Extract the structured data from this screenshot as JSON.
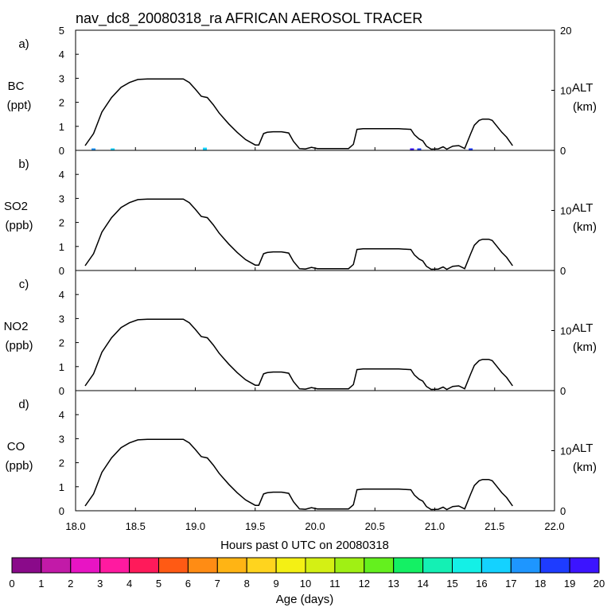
{
  "chart_data": {
    "type": "line",
    "title": "nav_dc8_20080318_ra AFRICAN AEROSOL TRACER",
    "xlabel": "Hours past 0 UTC on 20080318",
    "xlim": [
      18.0,
      22.0
    ],
    "x_ticks": [
      "18.0",
      "18.5",
      "19.0",
      "19.5",
      "20.0",
      "20.5",
      "21.0",
      "21.5",
      "22.0"
    ],
    "y_ticks": [
      "0",
      "1",
      "2",
      "3",
      "4",
      "5"
    ],
    "right_axis": {
      "label": "ALT",
      "unit": "(km)",
      "ylim": [
        0,
        20
      ],
      "ticks": [
        "0",
        "10",
        "20"
      ]
    },
    "panels": [
      {
        "letter": "a)",
        "species": "BC",
        "unit": "(ppt)",
        "ylim": [
          0,
          5
        ],
        "show_top_ticks": true
      },
      {
        "letter": "b)",
        "species": "SO2",
        "unit": "(ppb)",
        "ylim": [
          0,
          5
        ],
        "show_top_ticks": false
      },
      {
        "letter": "c)",
        "species": "NO2",
        "unit": "(ppb)",
        "ylim": [
          0,
          5
        ],
        "show_top_ticks": false
      },
      {
        "letter": "d)",
        "species": "CO",
        "unit": "(ppb)",
        "ylim": [
          0,
          5
        ],
        "show_top_ticks": false
      }
    ],
    "altitude_series": {
      "name": "ALT (km)",
      "x": [
        18.08,
        18.15,
        18.22,
        18.3,
        18.38,
        18.45,
        18.52,
        18.6,
        18.7,
        18.8,
        18.9,
        18.95,
        19.0,
        19.05,
        19.1,
        19.15,
        19.2,
        19.28,
        19.35,
        19.42,
        19.5,
        19.53,
        19.57,
        19.6,
        19.65,
        19.72,
        19.78,
        19.82,
        19.87,
        19.92,
        19.97,
        20.02,
        20.07,
        20.12,
        20.2,
        20.28,
        20.32,
        20.35,
        20.4,
        20.5,
        20.6,
        20.7,
        20.8,
        20.83,
        20.87,
        20.9,
        20.93,
        20.97,
        21.03,
        21.07,
        21.1,
        21.15,
        21.2,
        21.25,
        21.3,
        21.33,
        21.37,
        21.4,
        21.45,
        21.48,
        21.52,
        21.56,
        21.6,
        21.65
      ],
      "y": [
        0.8,
        2.8,
        6.4,
        8.8,
        10.5,
        11.3,
        11.8,
        11.9,
        11.9,
        11.9,
        11.9,
        11.3,
        10.2,
        9.0,
        8.8,
        7.6,
        6.2,
        4.4,
        3.0,
        1.8,
        0.9,
        0.9,
        2.8,
        3.0,
        3.1,
        3.1,
        2.9,
        1.5,
        0.3,
        0.25,
        0.5,
        0.3,
        0.3,
        0.3,
        0.3,
        0.3,
        1.0,
        3.5,
        3.6,
        3.6,
        3.6,
        3.6,
        3.5,
        2.6,
        1.9,
        1.6,
        0.7,
        0.2,
        0.25,
        0.6,
        0.2,
        0.7,
        0.8,
        0.3,
        2.8,
        4.2,
        5.0,
        5.2,
        5.2,
        5.0,
        4.0,
        3.0,
        2.2,
        0.8
      ]
    },
    "colorbar": {
      "label": "Age (days)",
      "ticks": [
        "0",
        "1",
        "2",
        "3",
        "4",
        "5",
        "6",
        "7",
        "8",
        "9",
        "10",
        "11",
        "12",
        "13",
        "14",
        "15",
        "16",
        "17",
        "18",
        "19",
        "20"
      ],
      "colors": [
        "#8a0a8a",
        "#c21aa8",
        "#e814c4",
        "#ff1aa0",
        "#ff1a5a",
        "#ff5a14",
        "#ff8c14",
        "#ffb414",
        "#ffd41e",
        "#f4f014",
        "#d4f014",
        "#a0f014",
        "#64f01e",
        "#14f064",
        "#14f0b4",
        "#14f0e6",
        "#14d2ff",
        "#1e96ff",
        "#1e3cff",
        "#3c14ff"
      ]
    },
    "tracer_marks": [
      {
        "panel": 0,
        "x": 18.15,
        "value": 0.05,
        "color": "#1e96ff"
      },
      {
        "panel": 0,
        "x": 18.31,
        "value": 0.05,
        "color": "#14d2ff"
      },
      {
        "panel": 0,
        "x": 19.08,
        "value": 0.08,
        "color": "#14d2ff"
      },
      {
        "panel": 0,
        "x": 20.81,
        "value": 0.05,
        "color": "#3c14ff"
      },
      {
        "panel": 0,
        "x": 20.87,
        "value": 0.05,
        "color": "#1e3cff"
      },
      {
        "panel": 0,
        "x": 21.3,
        "value": 0.05,
        "color": "#1e3cff"
      }
    ]
  }
}
